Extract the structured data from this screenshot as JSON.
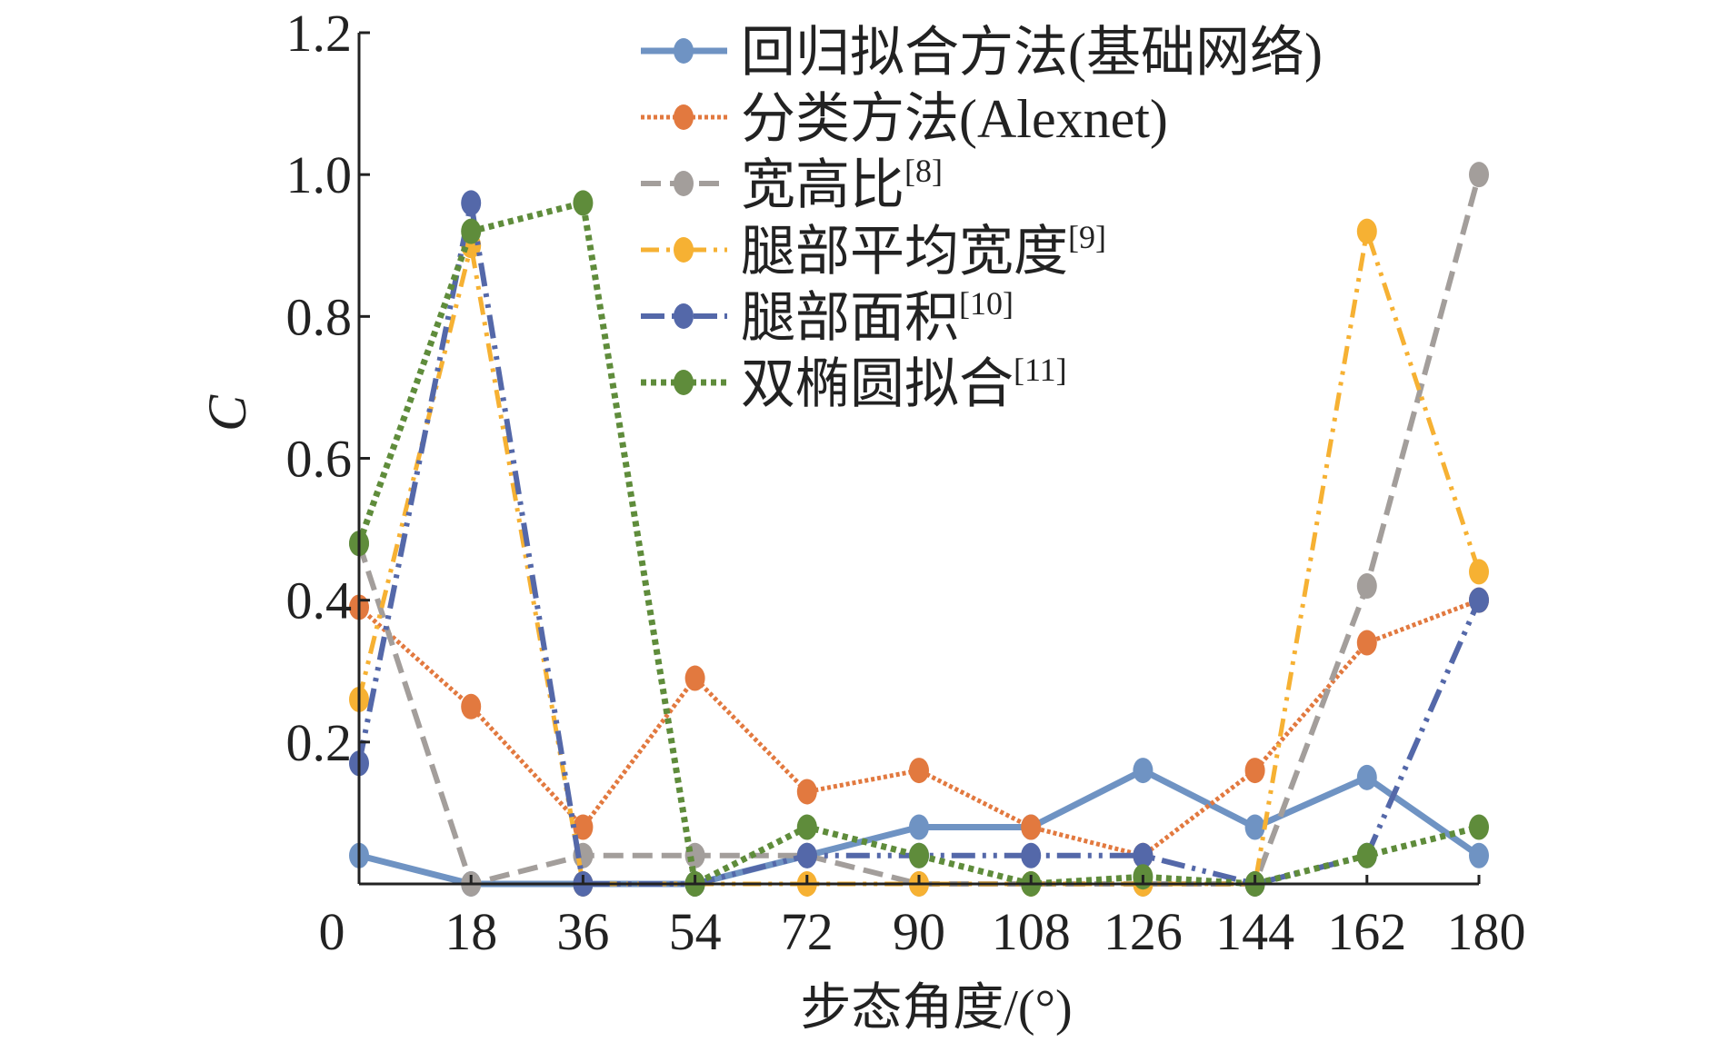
{
  "chart_data": {
    "type": "line",
    "title": "",
    "xlabel": "步态角度/(°)",
    "ylabel": "C",
    "x": [
      0,
      18,
      36,
      54,
      72,
      90,
      108,
      126,
      144,
      162,
      180
    ],
    "x_tick_labels": [
      "0",
      "18",
      "36",
      "54",
      "72",
      "90",
      "108",
      "126",
      "144",
      "162",
      "180"
    ],
    "y_tick_labels": [
      "0.2",
      "0.4",
      "0.6",
      "0.8",
      "1.0",
      "1.2"
    ],
    "y_ticks": [
      0.2,
      0.4,
      0.6,
      0.8,
      1.0,
      1.2
    ],
    "xlim": [
      0,
      180
    ],
    "ylim": [
      0,
      1.2
    ],
    "grid": false,
    "legend_position": "top-right",
    "series": [
      {
        "name": "回归拟合方法(基础网络)",
        "sup": "",
        "color": "#6f93c3",
        "dash": "solid",
        "values": [
          0.04,
          0,
          0,
          0,
          0.04,
          0.08,
          0.08,
          0.16,
          0.08,
          0.15,
          0.04
        ]
      },
      {
        "name": "分类方法(Alexnet)",
        "sup": "",
        "color": "#e2793f",
        "dash": "dot",
        "values": [
          0.39,
          0.25,
          0.08,
          0.29,
          0.13,
          0.16,
          0.08,
          0.04,
          0.16,
          0.34,
          0.4
        ]
      },
      {
        "name": "宽高比",
        "sup": "[8]",
        "color": "#a39e9b",
        "dash": "dash",
        "values": [
          0.48,
          0,
          0.04,
          0.04,
          0.04,
          0,
          0,
          0,
          0,
          0.42,
          1.0
        ]
      },
      {
        "name": "腿部平均宽度",
        "sup": "[9]",
        "color": "#f6b133",
        "dash": "dashdotdot",
        "values": [
          0.26,
          0.9,
          0,
          0,
          0,
          0,
          0,
          0,
          0,
          0.92,
          0.44
        ]
      },
      {
        "name": "腿部面积",
        "sup": "[10]",
        "color": "#5468a9",
        "dash": "longdashdotdot",
        "values": [
          0.17,
          0.96,
          0,
          0,
          0.04,
          0.04,
          0.04,
          0.04,
          0,
          0.04,
          0.4
        ]
      },
      {
        "name": "双椭圆拟合",
        "sup": "[11]",
        "color": "#5f8c3b",
        "dash": "squaredot",
        "values": [
          0.48,
          0.92,
          0.96,
          0,
          0.08,
          0.04,
          0,
          0.01,
          0,
          0.04,
          0.08
        ]
      }
    ]
  }
}
